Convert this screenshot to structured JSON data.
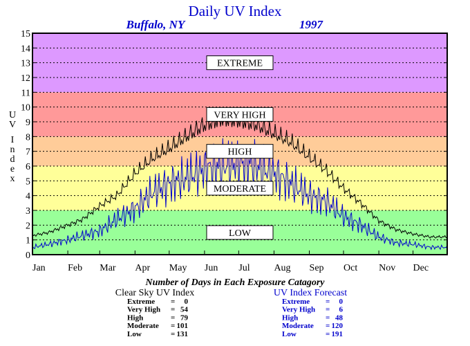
{
  "chart_data": {
    "type": "line",
    "title": "Daily UV Index",
    "subtitle_location": "Buffalo, NY",
    "subtitle_year": "1997",
    "ylabel": "UV Index",
    "ylim": [
      0,
      15
    ],
    "yticks": [
      0,
      1,
      2,
      3,
      4,
      5,
      6,
      7,
      8,
      9,
      10,
      11,
      12,
      13,
      14,
      15
    ],
    "xlim": [
      1,
      365
    ],
    "x_unit": "day of year",
    "month_labels": [
      "Jan",
      "Feb",
      "Mar",
      "Apr",
      "May",
      "Jun",
      "Jul",
      "Aug",
      "Sep",
      "Oct",
      "Nov",
      "Dec"
    ],
    "month_start_days": [
      1,
      32,
      60,
      91,
      121,
      152,
      182,
      213,
      244,
      274,
      305,
      335
    ],
    "grid": true,
    "bands": [
      {
        "label": "LOW",
        "from": 0,
        "to": 3,
        "color": "#99ff99"
      },
      {
        "label": "MODERATE",
        "from": 3,
        "to": 6,
        "color": "#ffff99"
      },
      {
        "label": "HIGH",
        "from": 6,
        "to": 8,
        "color": "#ffcc99"
      },
      {
        "label": "VERY HIGH",
        "from": 8,
        "to": 11,
        "color": "#ff9999"
      },
      {
        "label": "EXTREME",
        "from": 11,
        "to": 15,
        "color": "#dd99ff"
      }
    ],
    "series": [
      {
        "name": "Clear Sky UV Index",
        "color": "#000000",
        "x": [
          1,
          15,
          32,
          45,
          60,
          75,
          91,
          106,
          121,
          136,
          152,
          167,
          182,
          198,
          213,
          228,
          244,
          259,
          274,
          289,
          305,
          320,
          335,
          350,
          365
        ],
        "values": [
          1.3,
          1.5,
          2.0,
          2.4,
          3.3,
          4.0,
          5.5,
          6.5,
          7.2,
          8.0,
          8.8,
          9.2,
          9.1,
          8.8,
          8.2,
          7.6,
          6.6,
          5.7,
          4.5,
          3.5,
          2.3,
          1.7,
          1.4,
          1.2,
          1.2
        ]
      },
      {
        "name": "UV Index Forecast",
        "color": "#0000cc",
        "x": [
          1,
          15,
          32,
          45,
          60,
          75,
          91,
          106,
          121,
          136,
          152,
          167,
          182,
          198,
          213,
          228,
          244,
          259,
          274,
          289,
          305,
          320,
          335,
          350,
          365
        ],
        "values": [
          0.5,
          0.7,
          1.0,
          1.3,
          1.6,
          2.4,
          3.1,
          4.2,
          4.8,
          5.2,
          5.8,
          6.0,
          6.2,
          6.0,
          5.5,
          4.8,
          4.0,
          3.6,
          2.6,
          2.0,
          1.2,
          0.8,
          0.7,
          0.5,
          0.5
        ]
      }
    ]
  },
  "caption": "Number of Days in Each Exposure Catagory",
  "stats": {
    "clear_sky": {
      "title": "Clear Sky UV Index",
      "rows": [
        {
          "label": "Extreme",
          "sep": "=",
          "value": "0"
        },
        {
          "label": "Very High",
          "sep": "=",
          "value": "54"
        },
        {
          "label": "High",
          "sep": "=",
          "value": "79"
        },
        {
          "label": "Moderate",
          "sep": "=",
          "value": "101"
        },
        {
          "label": "Low",
          "sep": "=",
          "value": "131"
        }
      ]
    },
    "forecast": {
      "title": "UV Index Forecast",
      "rows": [
        {
          "label": "Extreme",
          "sep": "=",
          "value": "0"
        },
        {
          "label": "Very High",
          "sep": "=",
          "value": "6"
        },
        {
          "label": "High",
          "sep": "=",
          "value": "48"
        },
        {
          "label": "Moderate",
          "sep": "=",
          "value": "120"
        },
        {
          "label": "Low",
          "sep": "=",
          "value": "191"
        }
      ]
    }
  }
}
